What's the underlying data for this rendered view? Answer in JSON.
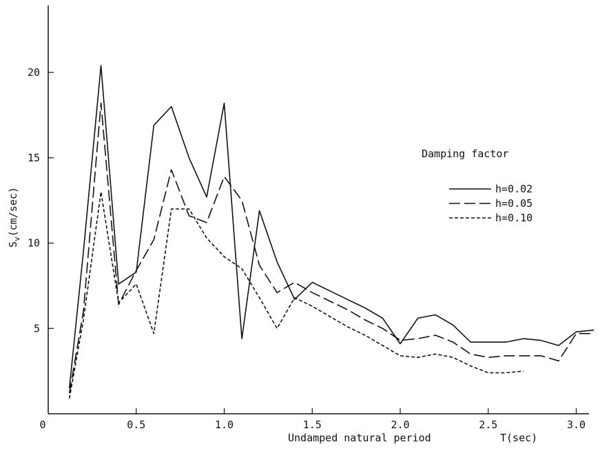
{
  "chart_data": {
    "type": "line",
    "title": "",
    "xlabel": "Undamped natural period",
    "xlabel_unit": "T(sec)",
    "ylabel": "Sv(cm/sec)",
    "ylabel_parts": {
      "base": "S",
      "sub": "v",
      "rest": "(cm/sec)"
    },
    "xlim": [
      0,
      3.2
    ],
    "ylim": [
      0,
      24
    ],
    "x_ticks": [
      0,
      0.5,
      1.0,
      1.5,
      2.0,
      2.5,
      3.0
    ],
    "x_tick_labels": [
      "0",
      "0.5",
      "1.0",
      "1.5",
      "2.0",
      "2.5",
      "3.0"
    ],
    "y_ticks": [
      5,
      10,
      15,
      20
    ],
    "y_tick_labels": [
      "5",
      "10",
      "15",
      "20"
    ],
    "grid": false,
    "legend": {
      "title": "Damping factor",
      "placement": "right"
    },
    "series": [
      {
        "name": "h=0.02",
        "dash": "solid",
        "x": [
          0.12,
          0.2,
          0.3,
          0.4,
          0.5,
          0.6,
          0.7,
          0.8,
          0.9,
          1.0,
          1.1,
          1.2,
          1.3,
          1.4,
          1.5,
          1.6,
          1.7,
          1.8,
          1.9,
          2.0,
          2.1,
          2.2,
          2.3,
          2.4,
          2.5,
          2.6,
          2.7,
          2.8,
          2.9,
          3.0,
          3.1
        ],
        "y": [
          1.5,
          9.5,
          20.4,
          7.6,
          8.3,
          16.9,
          18.0,
          15.0,
          12.7,
          18.2,
          4.4,
          11.9,
          8.9,
          6.7,
          7.7,
          7.2,
          6.7,
          6.2,
          5.6,
          4.1,
          5.6,
          5.8,
          5.2,
          4.2,
          4.2,
          4.2,
          4.4,
          4.3,
          4.0,
          4.8,
          4.9
        ]
      },
      {
        "name": "h=0.05",
        "dash": "long",
        "x": [
          0.12,
          0.2,
          0.3,
          0.4,
          0.5,
          0.6,
          0.7,
          0.8,
          0.9,
          1.0,
          1.1,
          1.2,
          1.3,
          1.4,
          1.5,
          1.6,
          1.7,
          1.8,
          1.9,
          2.0,
          2.1,
          2.2,
          2.3,
          2.4,
          2.5,
          2.6,
          2.7,
          2.8,
          2.9,
          3.0,
          3.1
        ],
        "y": [
          1.2,
          6.0,
          18.2,
          6.4,
          8.4,
          10.2,
          14.3,
          11.6,
          11.2,
          13.9,
          12.5,
          8.7,
          7.1,
          7.7,
          7.1,
          6.6,
          6.1,
          5.5,
          5.0,
          4.3,
          4.4,
          4.6,
          4.2,
          3.5,
          3.3,
          3.4,
          3.4,
          3.4,
          3.1,
          4.7,
          4.7
        ]
      },
      {
        "name": "h=0.10",
        "dash": "short",
        "x": [
          0.12,
          0.2,
          0.3,
          0.4,
          0.5,
          0.6,
          0.7,
          0.8,
          0.9,
          1.0,
          1.1,
          1.2,
          1.3,
          1.4,
          1.5,
          1.6,
          1.7,
          1.8,
          1.9,
          2.0,
          2.1,
          2.2,
          2.3,
          2.4,
          2.5,
          2.6,
          2.7
        ],
        "y": [
          0.9,
          5.5,
          13.0,
          6.5,
          7.6,
          4.7,
          12.0,
          12.0,
          10.3,
          9.2,
          8.5,
          6.8,
          5.0,
          6.8,
          6.3,
          5.7,
          5.1,
          4.6,
          4.0,
          3.4,
          3.3,
          3.5,
          3.3,
          2.8,
          2.4,
          2.4,
          2.5
        ]
      }
    ]
  }
}
